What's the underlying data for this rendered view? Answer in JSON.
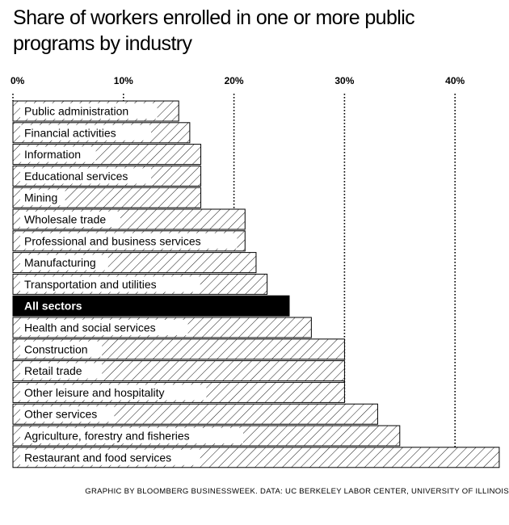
{
  "chart_data": {
    "type": "bar",
    "orientation": "horizontal",
    "title": "Share of workers enrolled in one or more public programs by industry",
    "xlabel": "",
    "ylabel": "",
    "xlim": [
      0,
      45
    ],
    "x_ticks": [
      0,
      10,
      20,
      30,
      40
    ],
    "x_tick_labels": [
      "0%",
      "10%",
      "20%",
      "30%",
      "40%"
    ],
    "grid": "dotted vertical at ticks",
    "categories": [
      "Public administration",
      "Financial activities",
      "Information",
      "Educational services",
      "Mining",
      "Wholesale trade",
      "Professional and business services",
      "Manufacturing",
      "Transportation and utilities",
      "All sectors",
      "Health and social services",
      "Construction",
      "Retail trade",
      "Other leisure and hospitality",
      "Other services",
      "Agriculture, forestry and fisheries",
      "Restaurant and food services"
    ],
    "values": [
      15.0,
      16.0,
      17.0,
      17.0,
      17.0,
      21.0,
      21.0,
      22.0,
      23.0,
      25.0,
      27.0,
      30.0,
      30.0,
      30.0,
      33.0,
      35.0,
      44.0
    ],
    "highlight": "All sectors",
    "colors": {
      "bar_stroke": "#000000",
      "hatch": "#000000",
      "highlight_fill": "#000000",
      "highlight_text": "#ffffff",
      "background": "#ffffff"
    }
  },
  "source": "GRAPHIC BY BLOOMBERG BUSINESSWEEK. DATA: UC BERKELEY LABOR CENTER, UNIVERSITY OF ILLINOIS"
}
